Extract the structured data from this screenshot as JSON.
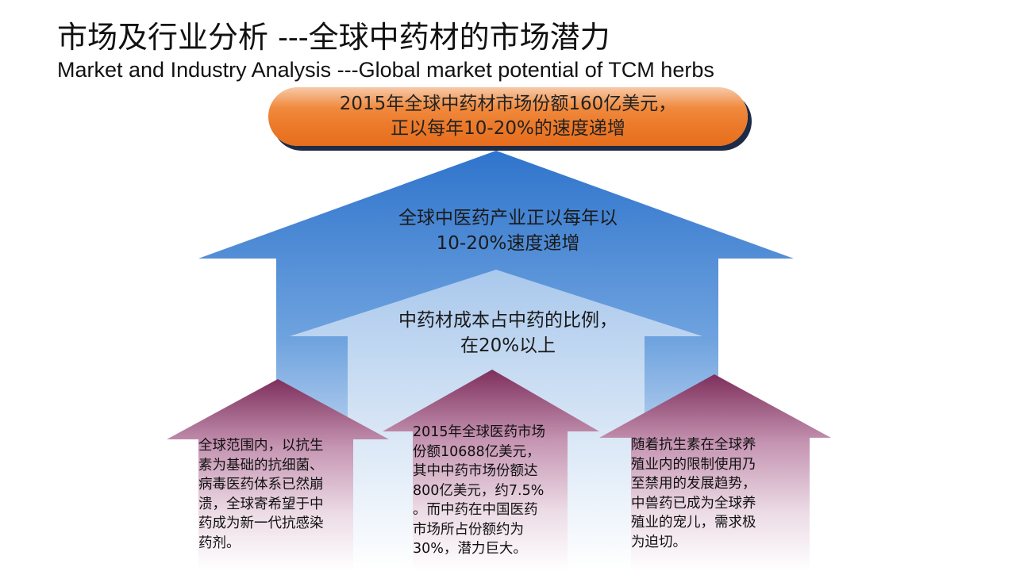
{
  "title": {
    "cn": "市场及行业分析 ---全球中药材的市场潜力",
    "en": "Market and Industry Analysis ---Global market potential of TCM herbs"
  },
  "banner": {
    "lines": [
      "2015年全球中药材市场份额160亿美元，",
      "正以每年10-20%的速度递增"
    ]
  },
  "big_arrow": {
    "lines": [
      "全球中医药产业正以每年以",
      "10-20%速度递增"
    ]
  },
  "mid_arrow": {
    "lines": [
      "中药材成本占中药的比例，",
      "在20%以上"
    ]
  },
  "bottom_arrows": {
    "left": {
      "lines": [
        "全球范围内，以抗生",
        "素为基础的抗细菌、",
        "病毒医药体系已然崩",
        "溃，全球寄希望于中",
        "药成为新一代抗感染",
        "药剂。"
      ]
    },
    "center": {
      "lines": [
        "2015年全球医药市场",
        "份额10688亿美元，",
        "其中中药市场份额达",
        "800亿美元，约7.5%",
        "。而中药在中国医药",
        "市场所占份额约为",
        "30%，潜力巨大。"
      ]
    },
    "right": {
      "lines": [
        "随着抗生素在全球养",
        "殖业内的限制使用乃",
        "至禁用的发展趋势，",
        "中兽药已成为全球养",
        "殖业的宠儿，需求极",
        "为迫切。"
      ]
    }
  },
  "colors": {
    "banner_orange": "#ec7a2a",
    "banner_shadow": "#1f2a44",
    "blue_arrow": "#3b7fd0",
    "purple_arrow": "#8a3d6a"
  }
}
